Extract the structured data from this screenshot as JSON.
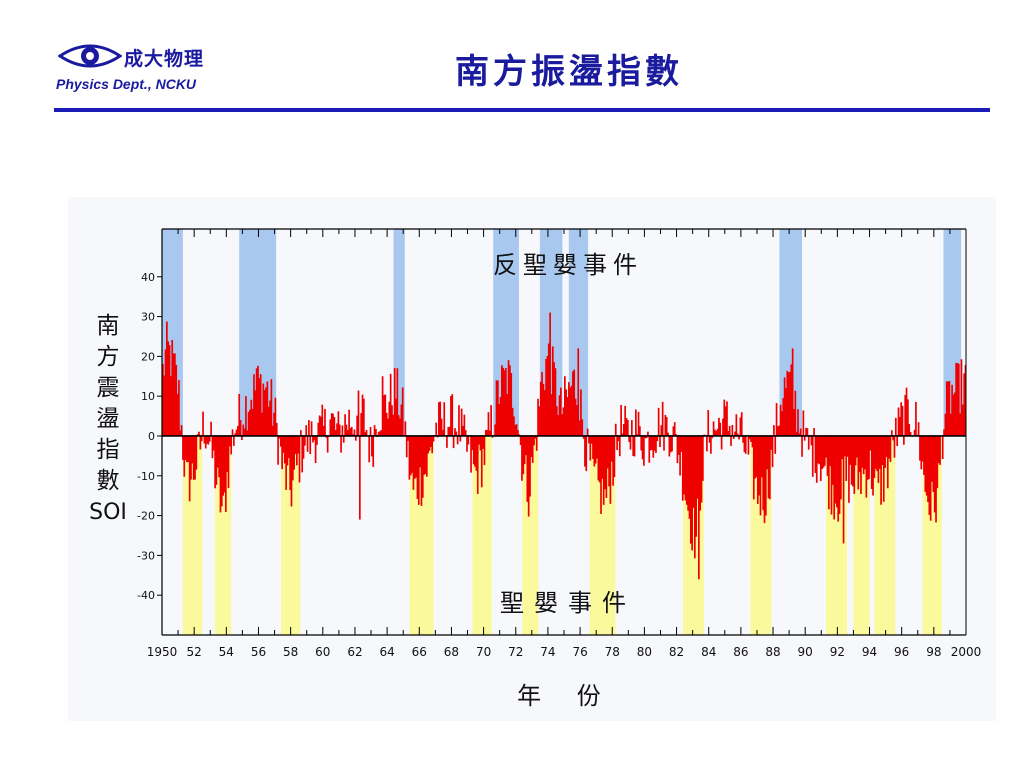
{
  "header": {
    "logo_cn": "成大物理",
    "logo_en": "Physics Dept., NCKU",
    "title": "南方振盪指數"
  },
  "colors": {
    "la_nina_band": "#a9c8f0",
    "el_nino_band": "#fafa9c",
    "soi_bar": "#ee0000",
    "title_blue": "#1b1b9e"
  },
  "chart_data": {
    "type": "bar",
    "title": "",
    "xlabel": "年 份",
    "ylabel": [
      "南",
      "方",
      "震",
      "盪",
      "指",
      "數",
      "SOI"
    ],
    "xlim": [
      1950,
      2000
    ],
    "ylim": [
      -50,
      52
    ],
    "x_ticks": [
      1950,
      1952,
      1954,
      1956,
      1958,
      1960,
      1962,
      1964,
      1966,
      1968,
      1970,
      1972,
      1974,
      1976,
      1978,
      1980,
      1982,
      1984,
      1986,
      1988,
      1990,
      1992,
      1994,
      1996,
      1998,
      2000
    ],
    "x_tick_labels": [
      "1950",
      "52",
      "54",
      "56",
      "58",
      "60",
      "62",
      "64",
      "66",
      "68",
      "70",
      "72",
      "74",
      "76",
      "78",
      "80",
      "82",
      "84",
      "86",
      "88",
      "90",
      "92",
      "94",
      "96",
      "98",
      "2000"
    ],
    "y_ticks": [
      -40,
      -30,
      -20,
      -10,
      0,
      10,
      20,
      30,
      40
    ],
    "y_tick_labels": [
      "-40",
      "-30",
      "-20",
      "-10",
      "0",
      "10",
      "20",
      "30",
      "40"
    ],
    "annotations": {
      "la_nina": "反聖嬰事件",
      "el_nino": "聖嬰事件"
    },
    "la_nina_periods": [
      [
        1950.0,
        1951.3
      ],
      [
        1954.8,
        1957.1
      ],
      [
        1964.4,
        1965.1
      ],
      [
        1970.6,
        1972.2
      ],
      [
        1973.5,
        1974.9
      ],
      [
        1975.3,
        1976.5
      ],
      [
        1988.4,
        1989.8
      ],
      [
        1998.6,
        1999.7
      ]
    ],
    "el_nino_periods": [
      [
        1951.3,
        1952.5
      ],
      [
        1953.3,
        1954.3
      ],
      [
        1957.4,
        1958.6
      ],
      [
        1965.4,
        1966.9
      ],
      [
        1969.3,
        1970.5
      ],
      [
        1972.4,
        1973.4
      ],
      [
        1976.6,
        1978.2
      ],
      [
        1982.4,
        1983.7
      ],
      [
        1986.6,
        1987.9
      ],
      [
        1991.3,
        1992.6
      ],
      [
        1993.0,
        1994.0
      ],
      [
        1994.3,
        1995.6
      ],
      [
        1997.3,
        1998.5
      ]
    ],
    "series": [
      {
        "values": {
          "type": "monthly",
          "start_year": 1950,
          "anchors": [
            [
              1950.0,
              15
            ],
            [
              1950.3,
              22
            ],
            [
              1950.7,
              18
            ],
            [
              1951.0,
              12
            ],
            [
              1951.2,
              2
            ],
            [
              1951.5,
              -12
            ],
            [
              1951.9,
              -10
            ],
            [
              1952.3,
              -4
            ],
            [
              1952.6,
              3
            ],
            [
              1953.0,
              -2
            ],
            [
              1953.4,
              -12
            ],
            [
              1953.8,
              -20
            ],
            [
              1954.1,
              -8
            ],
            [
              1954.5,
              2
            ],
            [
              1955.0,
              6
            ],
            [
              1955.5,
              10
            ],
            [
              1956.0,
              13
            ],
            [
              1956.5,
              12
            ],
            [
              1957.0,
              5
            ],
            [
              1957.5,
              -8
            ],
            [
              1958.0,
              -14
            ],
            [
              1958.4,
              -8
            ],
            [
              1958.8,
              -2
            ],
            [
              1959.5,
              0
            ],
            [
              1960.0,
              1
            ],
            [
              1960.5,
              4
            ],
            [
              1961.0,
              0
            ],
            [
              1961.5,
              4
            ],
            [
              1962.0,
              4
            ],
            [
              1962.5,
              6
            ],
            [
              1963.0,
              -4
            ],
            [
              1963.4,
              6
            ],
            [
              1964.0,
              8
            ],
            [
              1964.5,
              12
            ],
            [
              1965.0,
              5
            ],
            [
              1965.3,
              -6
            ],
            [
              1965.6,
              -14
            ],
            [
              1966.0,
              -12
            ],
            [
              1966.5,
              -8
            ],
            [
              1967.0,
              2
            ],
            [
              1967.5,
              3
            ],
            [
              1968.0,
              4
            ],
            [
              1968.5,
              2
            ],
            [
              1969.0,
              -4
            ],
            [
              1969.5,
              -10
            ],
            [
              1970.0,
              -5
            ],
            [
              1970.5,
              3
            ],
            [
              1971.0,
              12
            ],
            [
              1971.5,
              15
            ],
            [
              1972.0,
              8
            ],
            [
              1972.4,
              -6
            ],
            [
              1972.8,
              -14
            ],
            [
              1973.2,
              -2
            ],
            [
              1973.6,
              14
            ],
            [
              1974.0,
              20
            ],
            [
              1974.4,
              14
            ],
            [
              1974.8,
              6
            ],
            [
              1975.2,
              10
            ],
            [
              1975.6,
              14
            ],
            [
              1976.0,
              8
            ],
            [
              1976.4,
              -4
            ],
            [
              1976.8,
              -10
            ],
            [
              1977.2,
              -14
            ],
            [
              1977.6,
              -16
            ],
            [
              1978.0,
              -8
            ],
            [
              1978.5,
              2
            ],
            [
              1979.0,
              0
            ],
            [
              1979.5,
              2
            ],
            [
              1980.0,
              -2
            ],
            [
              1980.5,
              0
            ],
            [
              1981.0,
              3
            ],
            [
              1981.5,
              2
            ],
            [
              1982.0,
              -2
            ],
            [
              1982.4,
              -10
            ],
            [
              1982.8,
              -20
            ],
            [
              1983.2,
              -26
            ],
            [
              1983.6,
              -8
            ],
            [
              1984.0,
              1
            ],
            [
              1984.5,
              2
            ],
            [
              1985.0,
              4
            ],
            [
              1985.5,
              2
            ],
            [
              1986.0,
              0
            ],
            [
              1986.5,
              -6
            ],
            [
              1987.0,
              -14
            ],
            [
              1987.5,
              -16
            ],
            [
              1988.0,
              -4
            ],
            [
              1988.5,
              10
            ],
            [
              1989.0,
              14
            ],
            [
              1989.5,
              6
            ],
            [
              1990.0,
              -2
            ],
            [
              1990.5,
              -4
            ],
            [
              1991.0,
              -6
            ],
            [
              1991.5,
              -12
            ],
            [
              1992.0,
              -16
            ],
            [
              1992.5,
              -10
            ],
            [
              1993.0,
              -12
            ],
            [
              1993.5,
              -10
            ],
            [
              1994.0,
              -8
            ],
            [
              1994.5,
              -14
            ],
            [
              1995.0,
              -10
            ],
            [
              1995.5,
              -2
            ],
            [
              1996.0,
              4
            ],
            [
              1996.5,
              6
            ],
            [
              1997.0,
              2
            ],
            [
              1997.4,
              -12
            ],
            [
              1997.8,
              -18
            ],
            [
              1998.2,
              -16
            ],
            [
              1998.6,
              4
            ],
            [
              1999.0,
              10
            ],
            [
              1999.5,
              12
            ],
            [
              2000.0,
              14
            ]
          ],
          "noise_amplitude": 7,
          "spikes": [
            [
              1955.9,
              17
            ],
            [
              1962.3,
              -21
            ],
            [
              1963.7,
              15
            ],
            [
              1974.1,
              31
            ],
            [
              1975.9,
              22
            ],
            [
              1983.4,
              -36
            ],
            [
              1989.2,
              22
            ],
            [
              1992.4,
              -27
            ],
            [
              1998.0,
              -27
            ]
          ]
        }
      }
    ]
  }
}
